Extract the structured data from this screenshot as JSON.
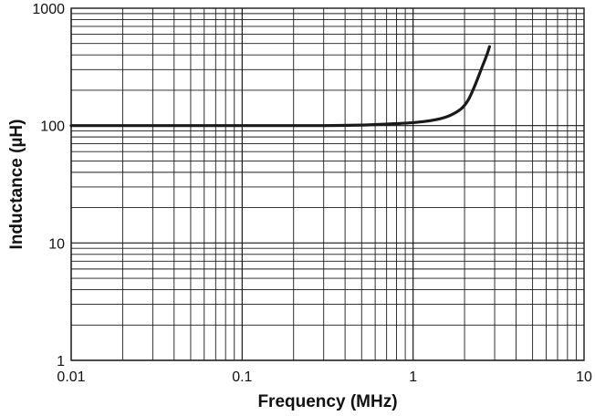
{
  "chart_data": {
    "type": "line",
    "title": "",
    "xlabel": "Frequency (MHz)",
    "ylabel": "Inductance (µH)",
    "x_scale": "log",
    "y_scale": "log",
    "xlim": [
      0.01,
      10
    ],
    "ylim": [
      1,
      1000
    ],
    "grid": true,
    "x_ticks": [
      "0.01",
      "0.1",
      "1",
      "10"
    ],
    "y_ticks": [
      "1",
      "10",
      "100",
      "1000"
    ],
    "series": [
      {
        "name": "",
        "color": "#1a1a1a",
        "x": [
          0.01,
          0.02,
          0.05,
          0.1,
          0.2,
          0.3,
          0.5,
          0.7,
          1.0,
          1.3,
          1.6,
          1.9,
          2.1,
          2.3,
          2.5,
          2.7,
          2.8
        ],
        "y": [
          100,
          100,
          100,
          100,
          100,
          100,
          101,
          103,
          106,
          111,
          120,
          138,
          165,
          220,
          300,
          400,
          470
        ]
      }
    ]
  }
}
